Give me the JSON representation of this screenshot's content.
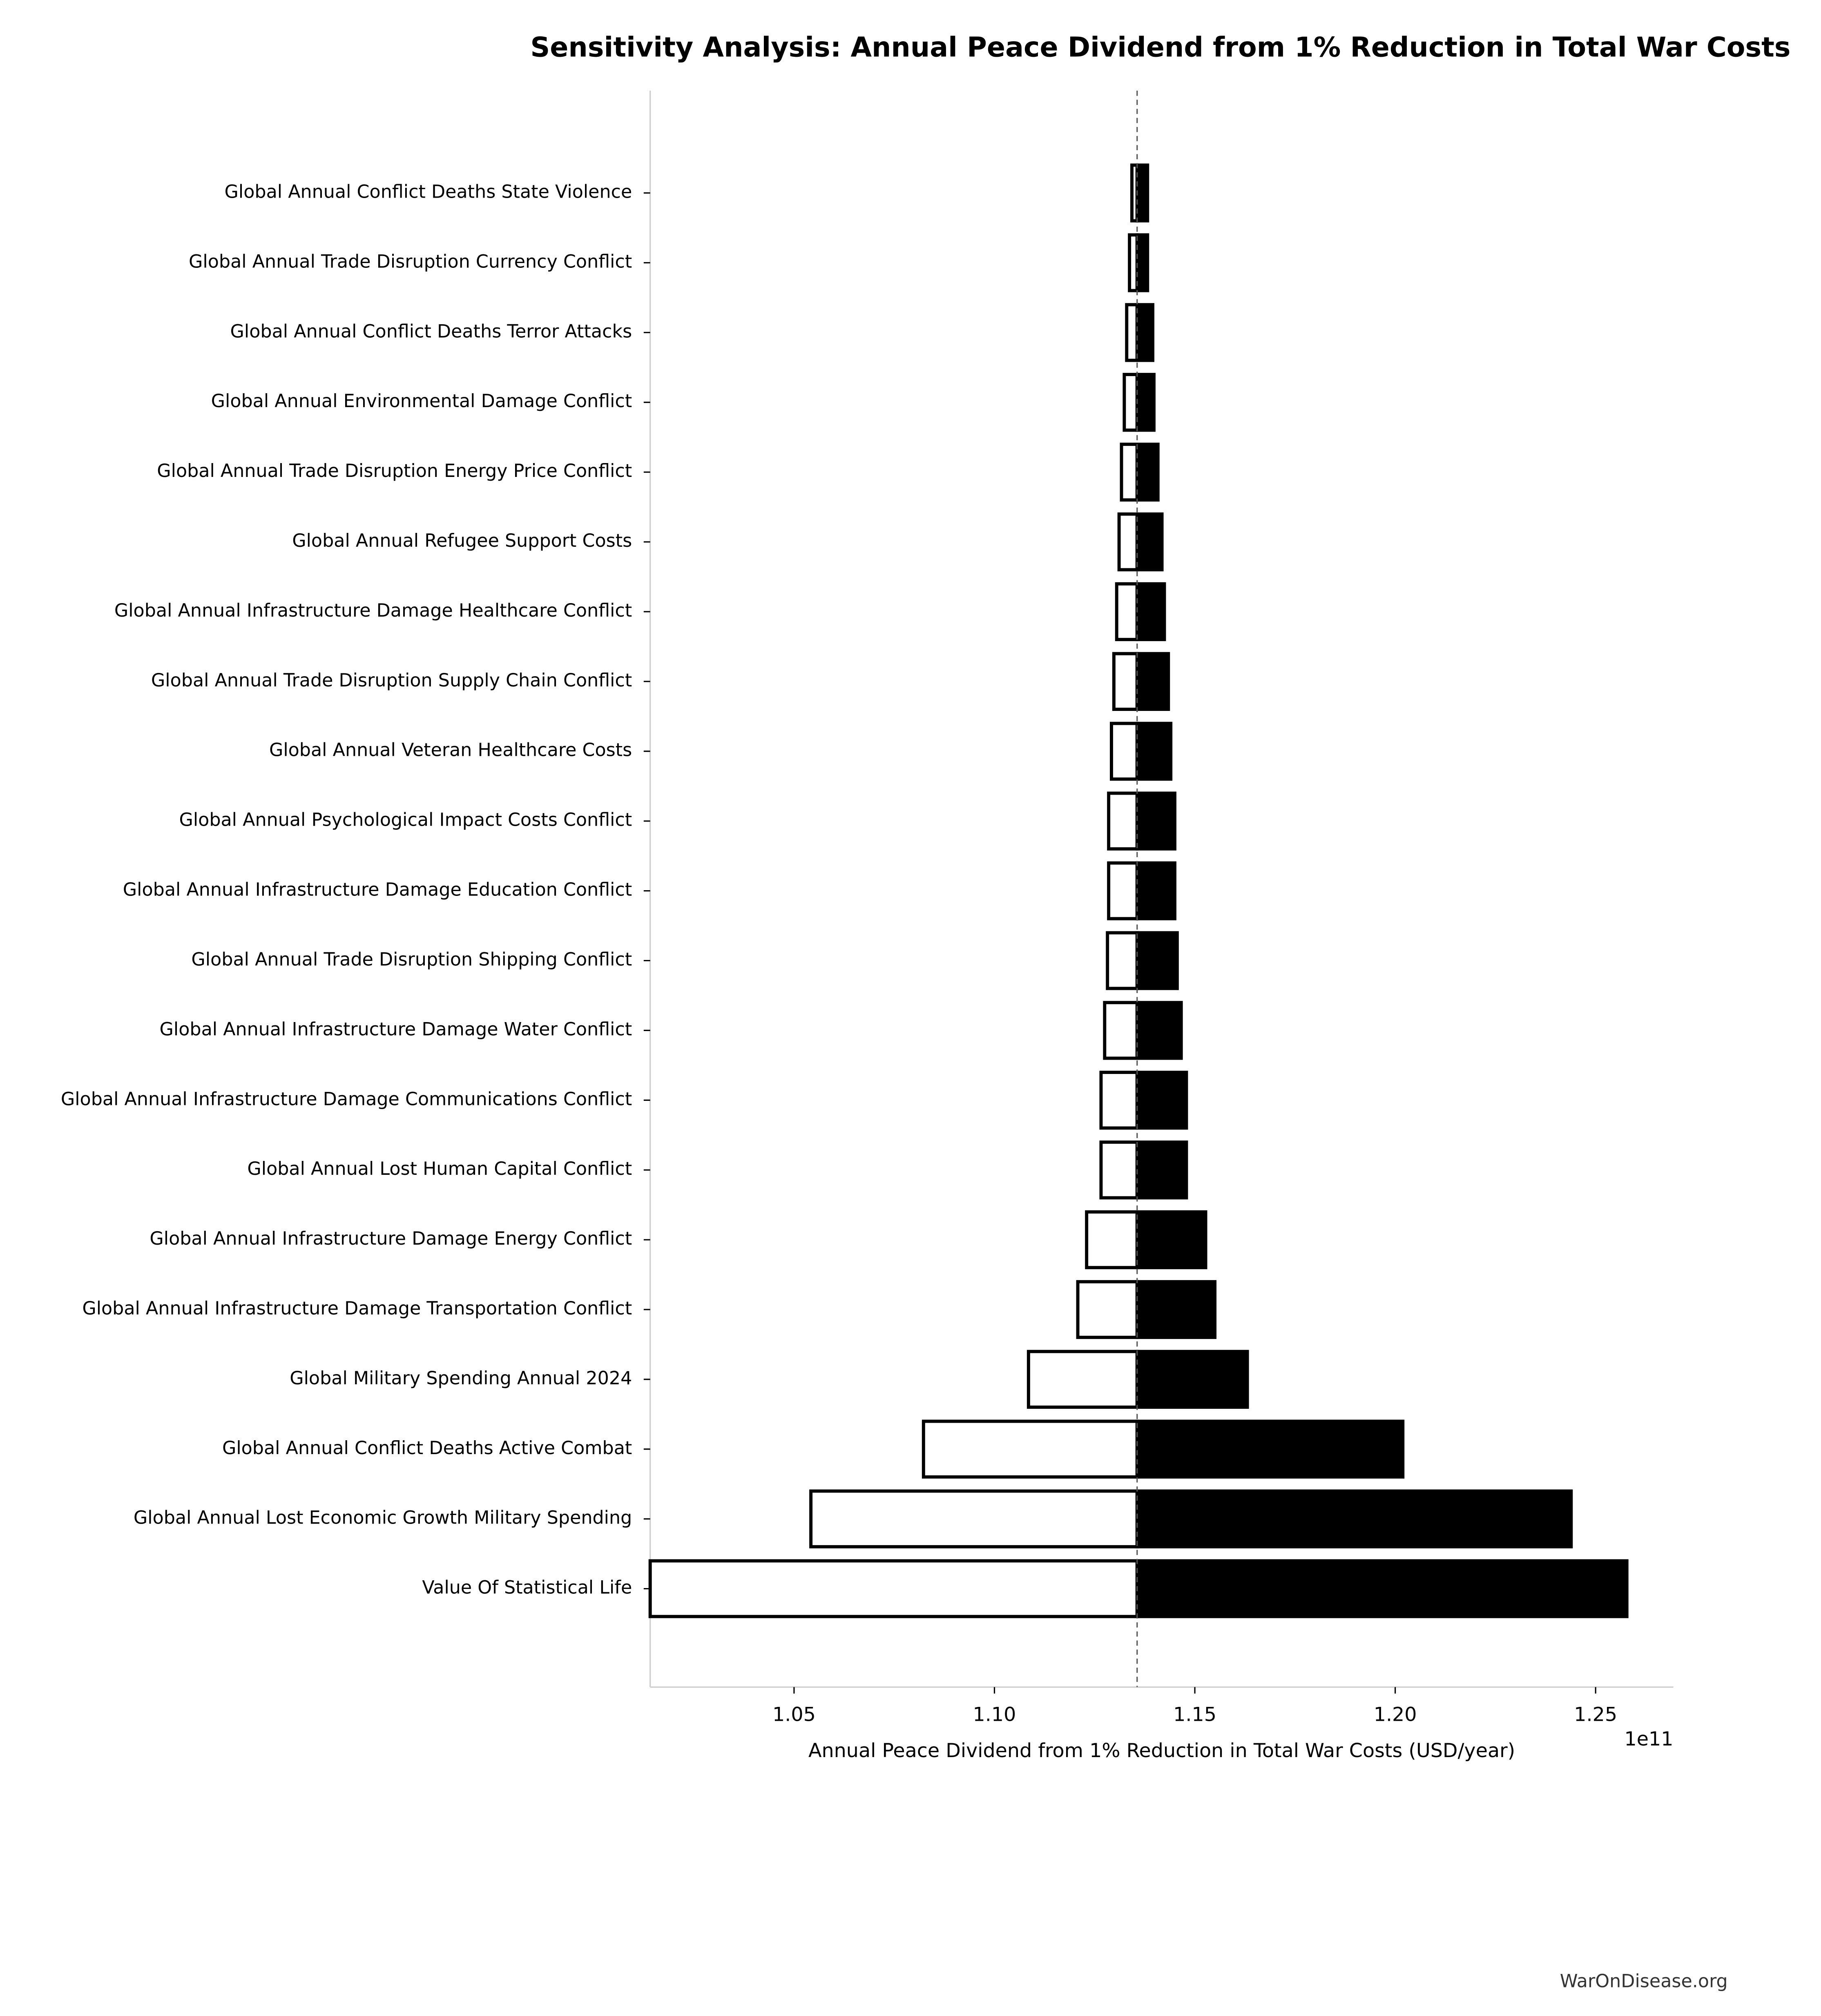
{
  "chart_data": {
    "type": "tornado",
    "title": "Sensitivity Analysis: Annual Peace Dividend from 1% Reduction in Total War Costs",
    "xlabel": "Annual Peace Dividend from 1% Reduction in Total War Costs (USD/year)",
    "x_offset_label": "1e11",
    "footer": "WarOnDisease.org",
    "categories": [
      "Global Annual Conflict Deaths State Violence",
      "Global Annual Trade Disruption Currency Conflict",
      "Global Annual Conflict Deaths Terror Attacks",
      "Global Annual Environmental Damage Conflict",
      "Global Annual Trade Disruption Energy Price Conflict",
      "Global Annual Refugee Support Costs",
      "Global Annual Infrastructure Damage Healthcare Conflict",
      "Global Annual Trade Disruption Supply Chain Conflict",
      "Global Annual Veteran Healthcare Costs",
      "Global Annual Psychological Impact Costs Conflict",
      "Global Annual Infrastructure Damage Education Conflict",
      "Global Annual Trade Disruption Shipping Conflict",
      "Global Annual Infrastructure Damage Water Conflict",
      "Global Annual Infrastructure Damage Communications Conflict",
      "Global Annual Lost Human Capital Conflict",
      "Global Annual Infrastructure Damage Energy Conflict",
      "Global Annual Infrastructure Damage Transportation Conflict",
      "Global Military Spending Annual 2024",
      "Global Annual Conflict Deaths Active Combat",
      "Global Annual Lost Economic Growth Military Spending",
      "Value Of Statistical Life"
    ],
    "low": [
      1.1343,
      1.1337,
      1.133,
      1.1324,
      1.1317,
      1.1311,
      1.1305,
      1.1298,
      1.1292,
      1.1285,
      1.1285,
      1.1282,
      1.1275,
      1.1266,
      1.1266,
      1.123,
      1.1208,
      1.1085,
      1.0823,
      1.0542,
      1.0141
    ],
    "high": [
      1.1382,
      1.1382,
      1.1395,
      1.1398,
      1.1408,
      1.1418,
      1.1424,
      1.1434,
      1.144,
      1.145,
      1.145,
      1.1456,
      1.1466,
      1.1479,
      1.1479,
      1.1527,
      1.155,
      1.1631,
      1.2019,
      1.2439,
      1.2578
    ],
    "baseline": 1.1356,
    "low_color": "#ffffff",
    "high_color": "#000000",
    "xlim": [
      1.0141,
      1.2694
    ],
    "xticks": [
      {
        "value": 1.05,
        "label": "1.05"
      },
      {
        "value": 1.1,
        "label": "1.10"
      },
      {
        "value": 1.15,
        "label": "1.15"
      },
      {
        "value": 1.2,
        "label": "1.20"
      },
      {
        "value": 1.25,
        "label": "1.25"
      }
    ]
  }
}
